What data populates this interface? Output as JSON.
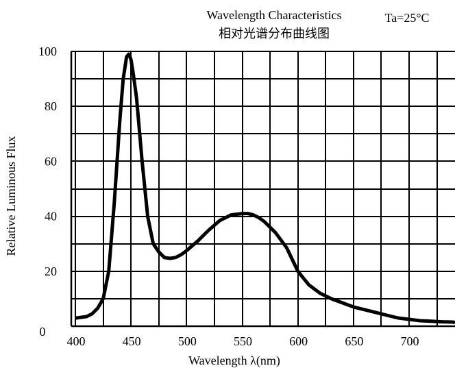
{
  "chart_data": {
    "type": "line",
    "title": "Wavelength Characteristics",
    "title_cn": "相对光谱分布曲线图",
    "condition": "Ta=25°C",
    "xlabel": "Wavelength λ(nm)",
    "ylabel": "Relative Luminous Flux",
    "xlim": [
      400,
      750
    ],
    "ylim": [
      0,
      100
    ],
    "x_ticks": [
      400,
      450,
      500,
      550,
      600,
      650,
      700
    ],
    "y_ticks": [
      0,
      20,
      40,
      60,
      80,
      100
    ],
    "grid": true,
    "series": [
      {
        "x": [
          401,
          410,
          415,
          420,
          425,
          430,
          435,
          440,
          443,
          446,
          448,
          450,
          452,
          455,
          460,
          465,
          470,
          475,
          480,
          485,
          490,
          495,
          500,
          510,
          520,
          530,
          540,
          550,
          555,
          560,
          565,
          570,
          575,
          580,
          590,
          600,
          610,
          620,
          630,
          640,
          650,
          660,
          670,
          680,
          690,
          700,
          710,
          720,
          730,
          740,
          750
        ],
        "y": [
          3,
          3.5,
          4.5,
          6.5,
          10,
          20,
          45,
          75,
          90,
          98,
          99,
          97,
          92,
          83,
          60,
          40,
          30,
          27,
          25,
          24.7,
          25,
          26,
          27.5,
          31,
          35,
          38.5,
          40.5,
          41,
          41,
          40.5,
          39.5,
          38,
          36,
          34,
          28.5,
          20,
          15,
          12,
          10,
          8.5,
          7,
          6,
          5,
          4,
          3,
          2.5,
          2,
          1.8,
          1.6,
          1.5,
          1.4
        ]
      }
    ]
  }
}
